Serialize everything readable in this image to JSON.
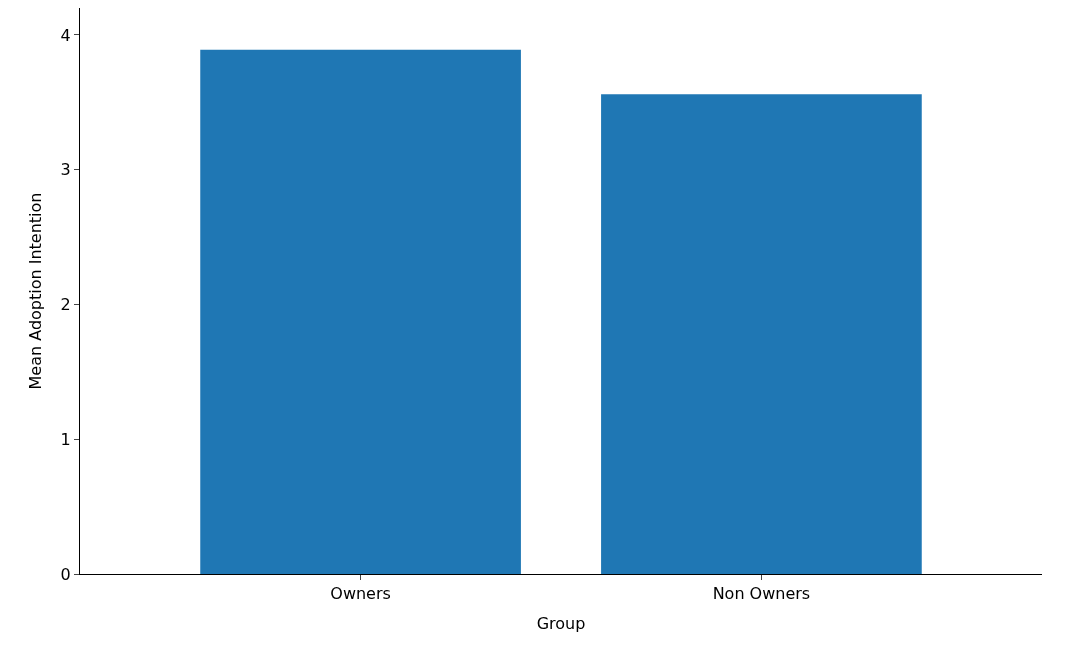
{
  "chart_data": {
    "type": "bar",
    "xlabel": "Group",
    "ylabel": "Mean Adoption Intention",
    "categories": [
      "Owners",
      "Non Owners"
    ],
    "values": [
      3.89,
      3.56
    ],
    "color": "#1f77b4",
    "ylim": [
      0,
      4.2
    ],
    "yticks": [
      0,
      1,
      2,
      3,
      4
    ]
  }
}
